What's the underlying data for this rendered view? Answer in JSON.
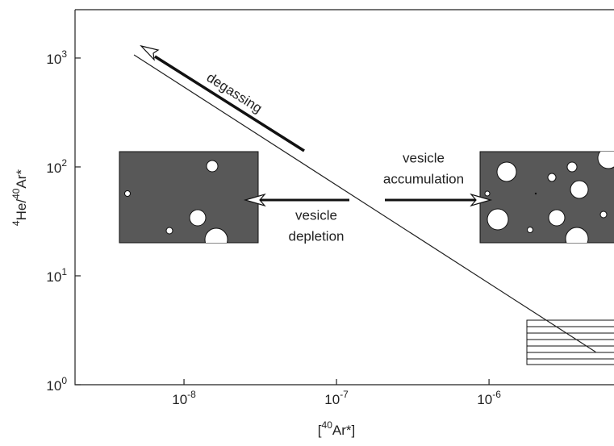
{
  "chart_data": {
    "type": "line",
    "xlog": true,
    "ylog": true,
    "xlabel": [
      {
        "text": "["
      },
      {
        "text": "40",
        "sup": true
      },
      {
        "text": "Ar*]"
      }
    ],
    "ylabel": [
      {
        "text": "4",
        "sup": true
      },
      {
        "text": "He/"
      },
      {
        "text": "40",
        "sup": true
      },
      {
        "text": "Ar*"
      }
    ],
    "xlim": [
      1.93e-09,
      6.6e-06
    ],
    "ylim": [
      1,
      2780
    ],
    "xticks": [
      {
        "value": 1e-08,
        "base": "10",
        "exponent": "-8"
      },
      {
        "value": 1e-07,
        "base": "10",
        "exponent": "-7"
      },
      {
        "value": 1e-06,
        "base": "10",
        "exponent": "-6"
      }
    ],
    "yticks": [
      {
        "value": 1,
        "base": "10",
        "exponent": "0"
      },
      {
        "value": 10,
        "base": "10",
        "exponent": "1"
      },
      {
        "value": 100,
        "base": "10",
        "exponent": "2"
      },
      {
        "value": 1000,
        "base": "10",
        "exponent": "3"
      }
    ],
    "series": [
      {
        "color": "#222222",
        "x": [
          4.7e-09,
          5e-06
        ],
        "values": [
          1070,
          2
        ]
      }
    ],
    "annotations": {
      "degassing": "degassing",
      "depletion": [
        "vesicle",
        "depletion"
      ],
      "accumulation": [
        "vesicle",
        "accumulation"
      ]
    }
  }
}
